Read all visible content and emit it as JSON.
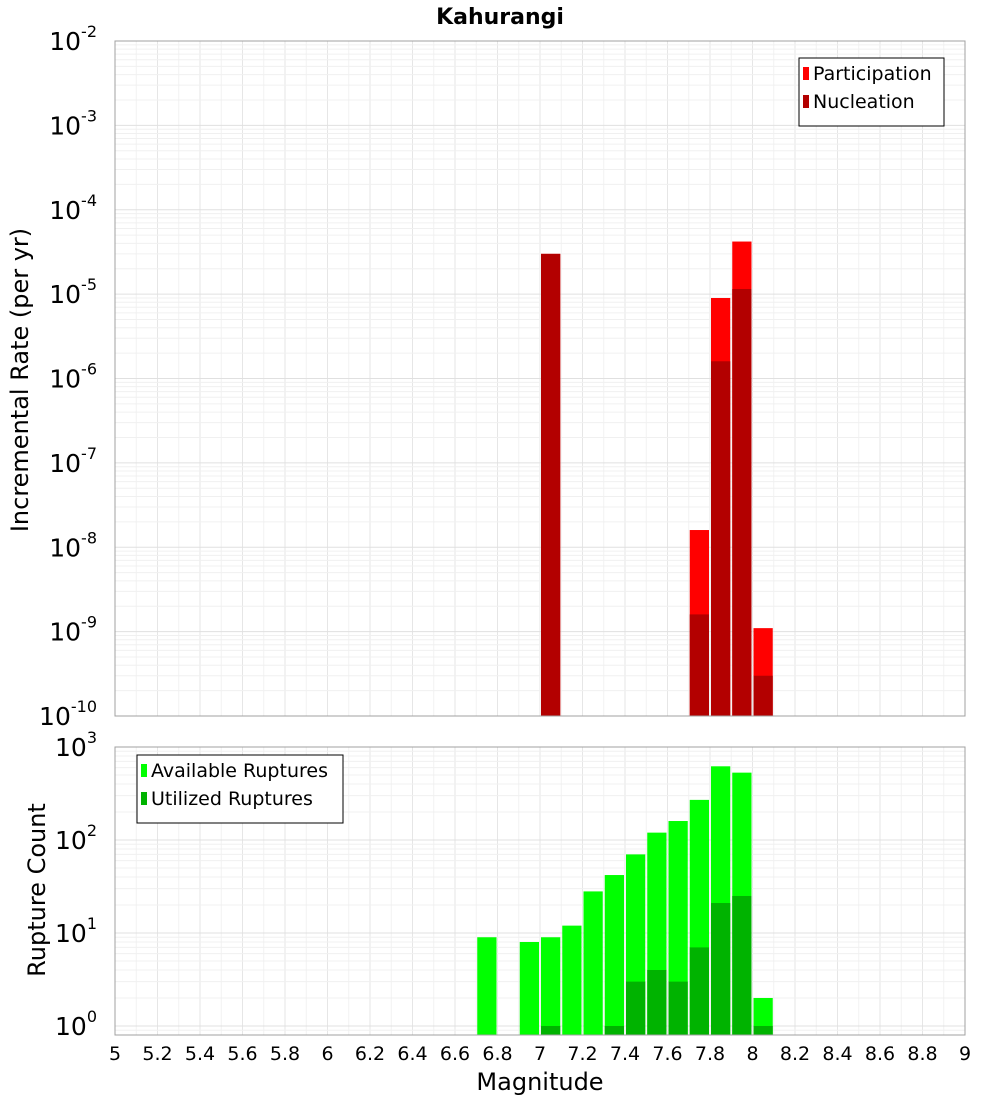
{
  "chart_data": [
    {
      "type": "bar",
      "title": "Kahurangi",
      "ylabel": "Incremental Rate (per yr)",
      "xlabel": "",
      "xlim": [
        5,
        9
      ],
      "ylim": [
        1e-10,
        0.01
      ],
      "yscale": "log",
      "grid": true,
      "legend_position": "top-right",
      "yticks": [
        {
          "base": "10",
          "exp": "-10",
          "value": 1e-10
        },
        {
          "base": "10",
          "exp": "-9",
          "value": 1e-09
        },
        {
          "base": "10",
          "exp": "-8",
          "value": 1e-08
        },
        {
          "base": "10",
          "exp": "-7",
          "value": 1e-07
        },
        {
          "base": "10",
          "exp": "-6",
          "value": 1e-06
        },
        {
          "base": "10",
          "exp": "-5",
          "value": 1e-05
        },
        {
          "base": "10",
          "exp": "-4",
          "value": 0.0001
        },
        {
          "base": "10",
          "exp": "-3",
          "value": 0.001
        },
        {
          "base": "10",
          "exp": "-2",
          "value": 0.01
        }
      ],
      "bar_width": 0.1,
      "series": [
        {
          "name": "Participation",
          "color": "#ff0000",
          "points": [
            {
              "x": 7.05,
              "y": 3e-05
            },
            {
              "x": 7.75,
              "y": 1.6e-08
            },
            {
              "x": 7.85,
              "y": 9e-06
            },
            {
              "x": 7.95,
              "y": 4.2e-05
            },
            {
              "x": 8.05,
              "y": 1.1e-09
            }
          ]
        },
        {
          "name": "Nucleation",
          "color": "#b30000",
          "points": [
            {
              "x": 7.05,
              "y": 3e-05
            },
            {
              "x": 7.75,
              "y": 1.6e-09
            },
            {
              "x": 7.85,
              "y": 1.6e-06
            },
            {
              "x": 7.95,
              "y": 1.15e-05
            },
            {
              "x": 8.05,
              "y": 3e-10
            }
          ]
        }
      ]
    },
    {
      "type": "bar",
      "ylabel": "Rupture Count",
      "xlabel": "Magnitude",
      "xlim": [
        5,
        9
      ],
      "ylim": [
        0.8,
        1000
      ],
      "yscale": "log",
      "grid": true,
      "legend_position": "top-left",
      "yticks": [
        {
          "base": "10",
          "exp": "0",
          "value": 1
        },
        {
          "base": "10",
          "exp": "1",
          "value": 10
        },
        {
          "base": "10",
          "exp": "2",
          "value": 100
        },
        {
          "base": "10",
          "exp": "3",
          "value": 1000
        }
      ],
      "xtick_labels": [
        "5",
        "5.2",
        "5.4",
        "5.6",
        "5.8",
        "6",
        "6.2",
        "6.4",
        "6.6",
        "6.8",
        "7",
        "7.2",
        "7.4",
        "7.6",
        "7.8",
        "8",
        "8.2",
        "8.4",
        "8.6",
        "8.8",
        "9"
      ],
      "bar_width": 0.1,
      "series": [
        {
          "name": "Available Ruptures",
          "color": "#00ff00",
          "points": [
            {
              "x": 6.75,
              "y": 9
            },
            {
              "x": 6.95,
              "y": 8
            },
            {
              "x": 7.05,
              "y": 9
            },
            {
              "x": 7.15,
              "y": 12
            },
            {
              "x": 7.25,
              "y": 28
            },
            {
              "x": 7.35,
              "y": 42
            },
            {
              "x": 7.45,
              "y": 70
            },
            {
              "x": 7.55,
              "y": 120
            },
            {
              "x": 7.65,
              "y": 160
            },
            {
              "x": 7.75,
              "y": 270
            },
            {
              "x": 7.85,
              "y": 620
            },
            {
              "x": 7.95,
              "y": 530
            },
            {
              "x": 8.05,
              "y": 2
            }
          ]
        },
        {
          "name": "Utilized Ruptures",
          "color": "#00b300",
          "points": [
            {
              "x": 7.05,
              "y": 1
            },
            {
              "x": 7.35,
              "y": 1
            },
            {
              "x": 7.45,
              "y": 3
            },
            {
              "x": 7.55,
              "y": 4
            },
            {
              "x": 7.65,
              "y": 3
            },
            {
              "x": 7.75,
              "y": 7
            },
            {
              "x": 7.85,
              "y": 21
            },
            {
              "x": 7.95,
              "y": 25
            },
            {
              "x": 8.05,
              "y": 1
            }
          ]
        }
      ]
    }
  ]
}
